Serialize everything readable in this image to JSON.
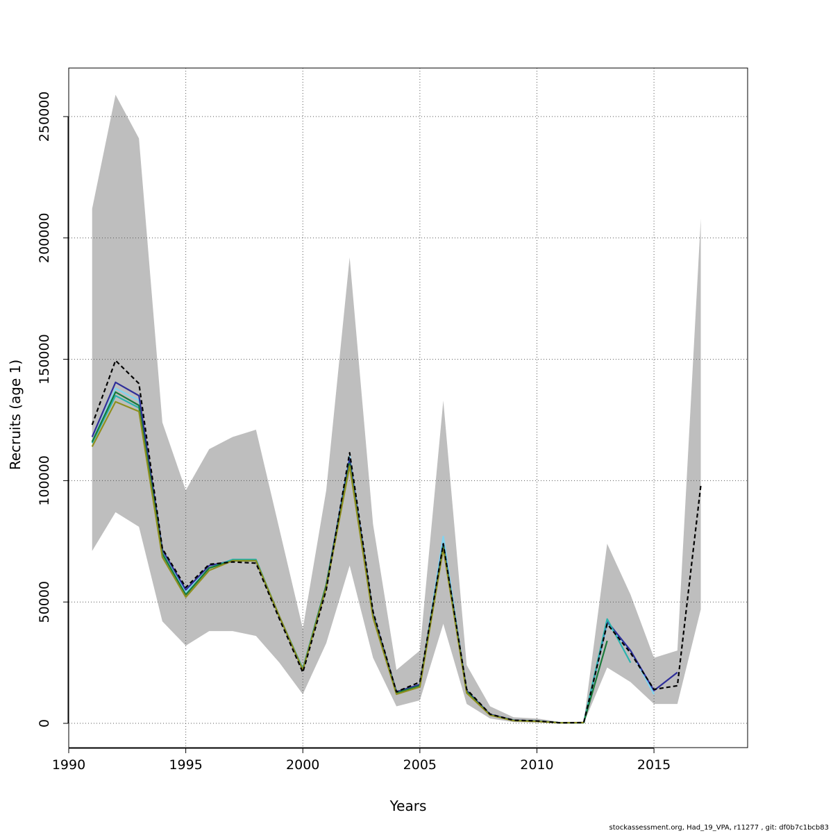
{
  "chart_data": {
    "type": "line",
    "xlabel": "Years",
    "ylabel": "Recruits (age 1)",
    "xlim": [
      1990,
      2019
    ],
    "ylim": [
      -10000,
      270000
    ],
    "x_ticks": [
      1990,
      1995,
      2000,
      2005,
      2010,
      2015
    ],
    "y_ticks": [
      0,
      50000,
      100000,
      150000,
      200000,
      250000
    ],
    "grid": true,
    "band": {
      "color": "#bebebe",
      "x": [
        1991,
        1992,
        1993,
        1994,
        1995,
        1996,
        1997,
        1998,
        1999,
        2000,
        2001,
        2002,
        2003,
        2004,
        2005,
        2006,
        2007,
        2008,
        2009,
        2010,
        2011,
        2012,
        2013,
        2014,
        2015,
        2016,
        2017
      ],
      "upper": [
        212000,
        259000,
        241000,
        124000,
        96000,
        113000,
        118000,
        121000,
        80000,
        39000,
        96000,
        192000,
        82000,
        22000,
        30000,
        133000,
        24000,
        7000,
        2500,
        2000,
        600,
        700,
        74000,
        53000,
        27000,
        30000,
        208000
      ],
      "lower": [
        71000,
        87000,
        81000,
        42000,
        32000,
        38000,
        38000,
        36000,
        25000,
        12000,
        33000,
        65000,
        27000,
        7000,
        9500,
        41000,
        8000,
        2000,
        500,
        300,
        0,
        0,
        23000,
        17000,
        8000,
        8000,
        47000
      ]
    },
    "series": [
      {
        "color": "#7fd4f0",
        "style": "solid",
        "x": [
          1991,
          1992,
          1993,
          1994,
          1995,
          1996,
          1997,
          1998,
          1999,
          2000,
          2001,
          2002,
          2003,
          2004,
          2005,
          2006,
          2007,
          2008,
          2009,
          2010,
          2011,
          2012,
          2013,
          2014,
          2015
        ],
        "values": [
          116000,
          138000,
          133000,
          71000,
          54000,
          64000,
          67000,
          67000,
          44000,
          22000,
          57000,
          110000,
          45000,
          12500,
          15500,
          77000,
          13000,
          3500,
          1200,
          900,
          200,
          300,
          41000,
          30000,
          12000
        ]
      },
      {
        "color": "#2e2e9a",
        "style": "solid",
        "x": [
          1991,
          1992,
          1993,
          1994,
          1995,
          1996,
          1997,
          1998,
          1999,
          2000,
          2001,
          2002,
          2003,
          2004,
          2005,
          2006,
          2007,
          2008,
          2009,
          2010,
          2011,
          2012,
          2013,
          2014,
          2015,
          2016
        ],
        "values": [
          118000,
          140500,
          135000,
          71500,
          55000,
          65000,
          67000,
          67000,
          44000,
          22000,
          57000,
          109000,
          45000,
          13000,
          16000,
          74000,
          13500,
          3700,
          1300,
          1000,
          200,
          300,
          42000,
          30000,
          13500,
          21000
        ]
      },
      {
        "color": "#2ab3ae",
        "style": "solid",
        "x": [
          1991,
          1992,
          1993,
          1994,
          1995,
          1996,
          1997,
          1998,
          1999,
          2000,
          2001,
          2002,
          2003,
          2004,
          2005,
          2006,
          2007,
          2008,
          2009,
          2010,
          2011,
          2012,
          2013,
          2014
        ],
        "values": [
          115500,
          135000,
          130000,
          69500,
          53000,
          64000,
          67500,
          67500,
          44000,
          22500,
          57000,
          107000,
          44000,
          12500,
          15500,
          73000,
          13000,
          3500,
          1200,
          900,
          200,
          300,
          43000,
          25000
        ]
      },
      {
        "color": "#1a7a3a",
        "style": "solid",
        "x": [
          1991,
          1992,
          1993,
          1994,
          1995,
          1996,
          1997,
          1998,
          1999,
          2000,
          2001,
          2002,
          2003,
          2004,
          2005,
          2006,
          2007,
          2008,
          2009,
          2010,
          2011,
          2012,
          2013
        ],
        "values": [
          116000,
          136500,
          131000,
          70000,
          53000,
          64000,
          67000,
          67000,
          44000,
          22000,
          57000,
          107000,
          44000,
          12500,
          15500,
          73000,
          13000,
          3500,
          1200,
          900,
          200,
          300,
          34000
        ]
      },
      {
        "color": "#8f8f1e",
        "style": "solid",
        "x": [
          1991,
          1992,
          1993,
          1994,
          1995,
          1996,
          1997,
          1998,
          1999,
          2000,
          2001,
          2002,
          2003,
          2004,
          2005,
          2006,
          2007,
          2008,
          2009,
          2010,
          2011,
          2012
        ],
        "values": [
          114000,
          132500,
          128500,
          68500,
          52000,
          63000,
          67000,
          67000,
          44000,
          22000,
          56000,
          106000,
          43500,
          12000,
          15000,
          72000,
          12500,
          3400,
          1100,
          800,
          200,
          300
        ]
      },
      {
        "color": "#000000",
        "style": "dashed",
        "x": [
          1991,
          1992,
          1993,
          1994,
          1995,
          1996,
          1997,
          1998,
          1999,
          2000,
          2001,
          2002,
          2003,
          2004,
          2005,
          2006,
          2007,
          2008,
          2009,
          2010,
          2011,
          2012,
          2013,
          2014,
          2015,
          2016,
          2017
        ],
        "values": [
          123000,
          149500,
          140000,
          72000,
          56000,
          65500,
          66500,
          66000,
          43000,
          21000,
          55000,
          111500,
          46000,
          13000,
          17000,
          74000,
          14000,
          3800,
          1300,
          1000,
          200,
          300,
          41000,
          29000,
          14000,
          15500,
          98000
        ]
      }
    ]
  },
  "footer": "stockassessment.org, Had_19_VPA, r11277 , git: df0b7c1bcb83"
}
